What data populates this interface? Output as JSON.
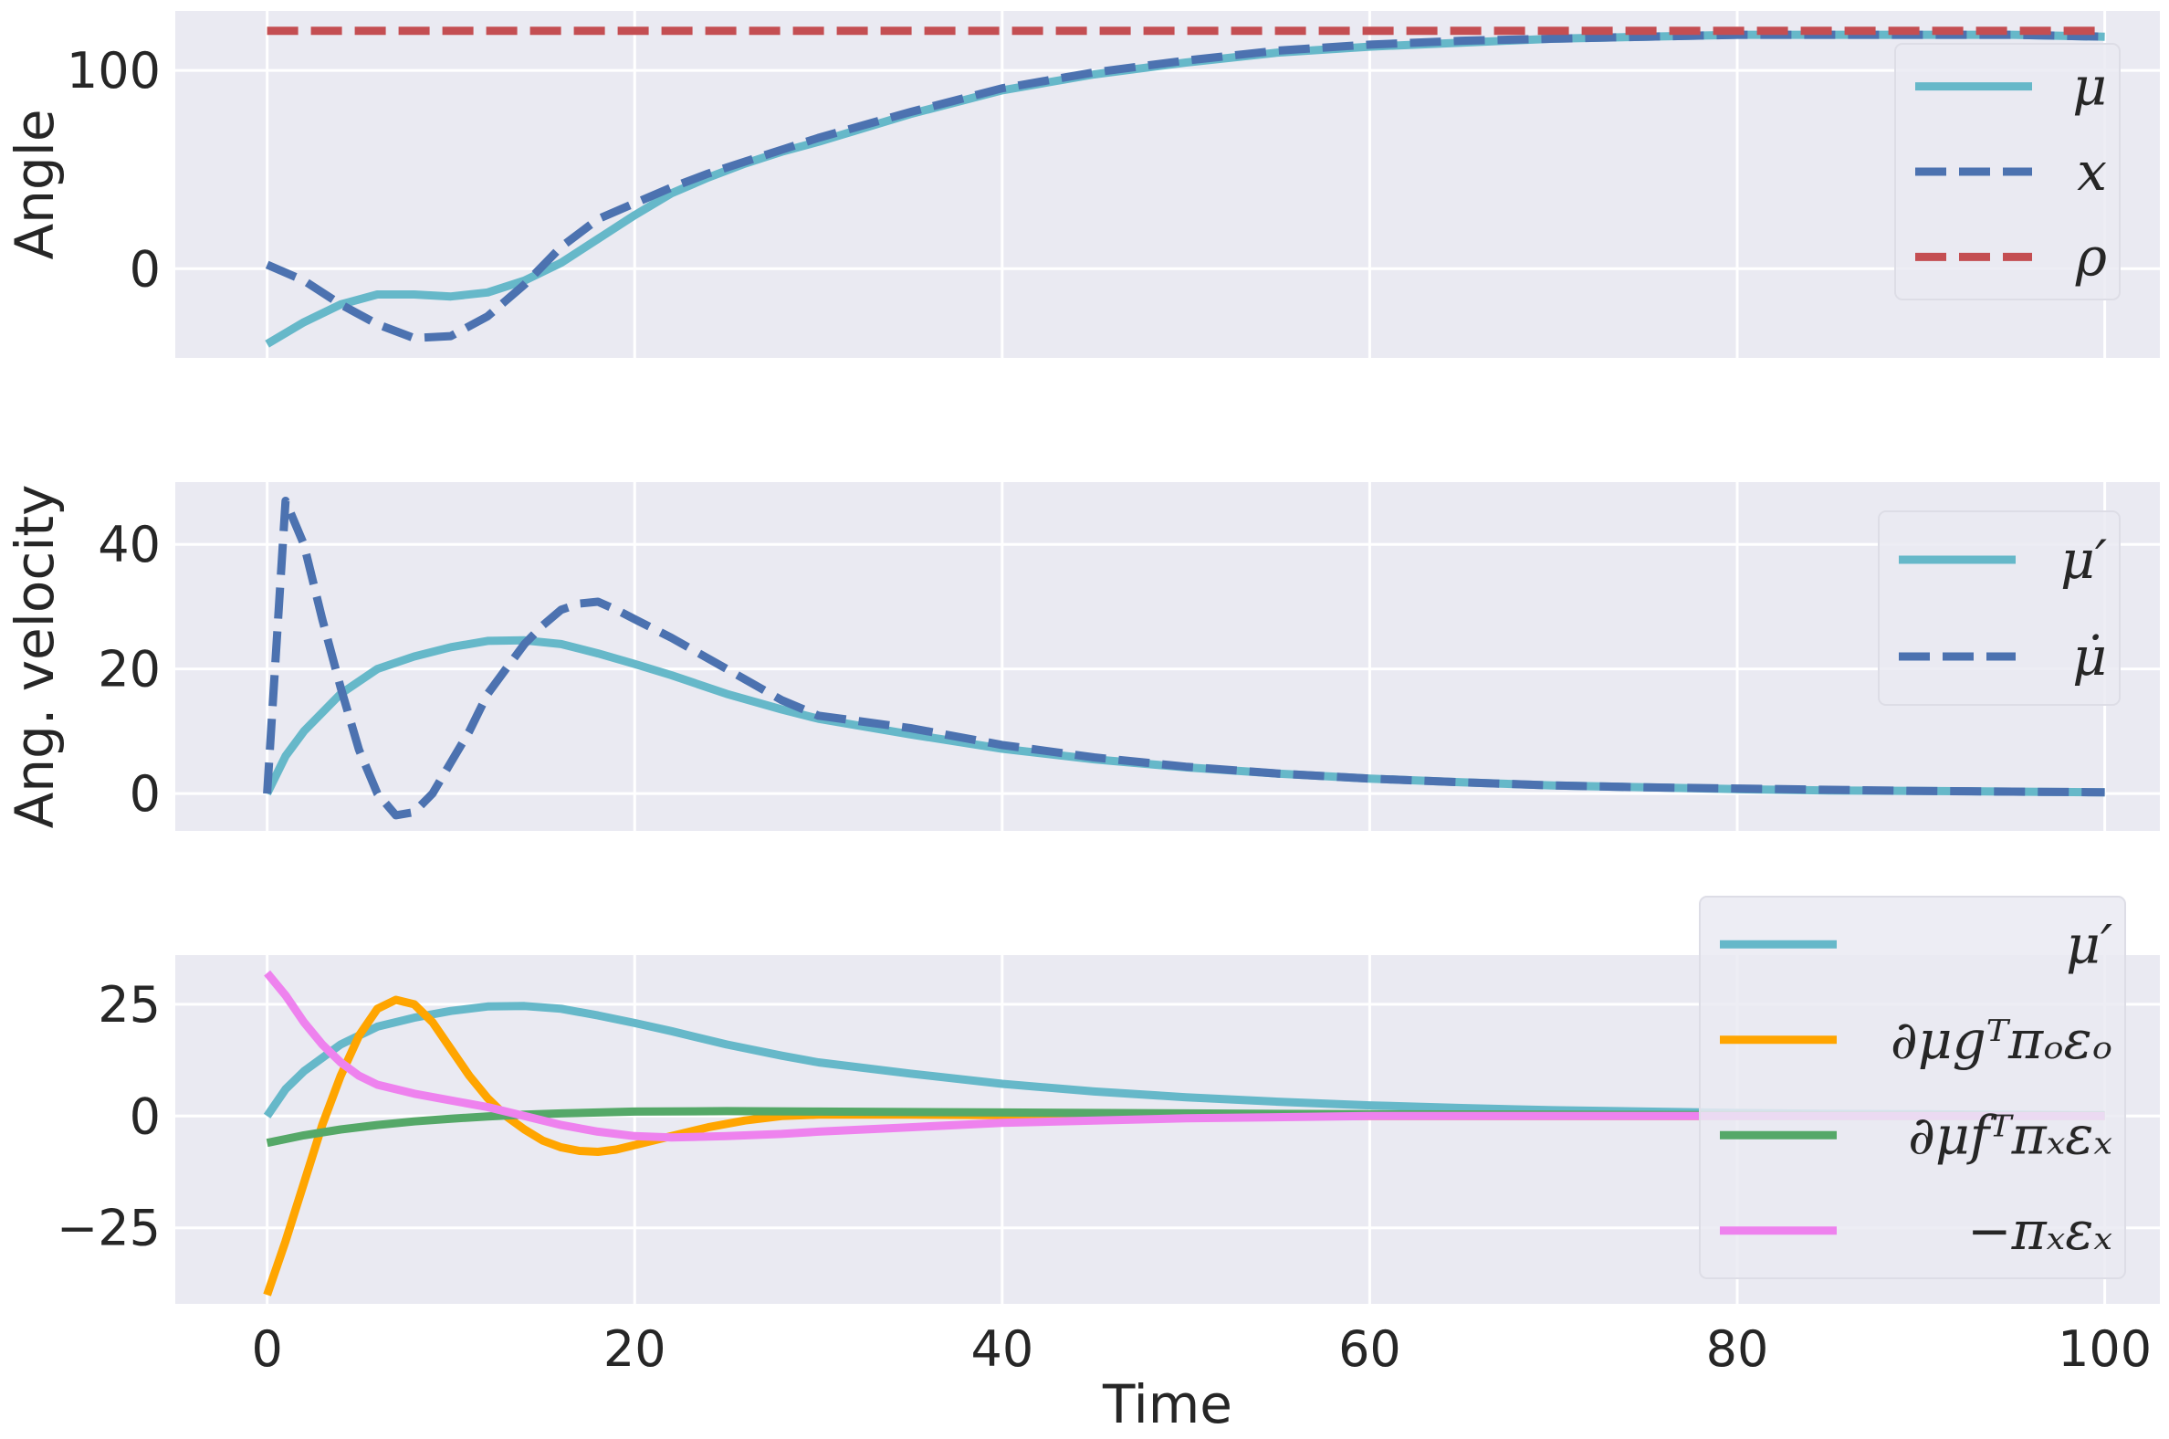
{
  "chart_data": [
    {
      "type": "line",
      "ylabel": "Angle",
      "ylim": [
        -45,
        130
      ],
      "yticks": [
        {
          "value": 0,
          "label": "0"
        },
        {
          "value": 100,
          "label": "100"
        }
      ],
      "legend_position": "right",
      "series": [
        {
          "name": "μ",
          "color": "#66b8c9",
          "style": "solid",
          "x": [
            0,
            2,
            4,
            6,
            8,
            10,
            12,
            14,
            16,
            18,
            20,
            22,
            24,
            26,
            28,
            30,
            35,
            40,
            45,
            50,
            55,
            60,
            65,
            70,
            75,
            80,
            85,
            90,
            95,
            100
          ],
          "y": [
            -38,
            -27,
            -18,
            -13,
            -13,
            -14,
            -12,
            -6,
            3,
            15,
            27,
            38,
            46,
            53,
            59,
            64,
            78,
            90,
            98,
            104,
            109,
            112,
            114,
            116,
            117,
            118,
            118,
            118,
            118,
            117
          ]
        },
        {
          "name": "x",
          "color": "#4c72b0",
          "style": "dashed",
          "x": [
            0,
            2,
            4,
            6,
            8,
            10,
            12,
            14,
            16,
            18,
            20,
            22,
            24,
            26,
            28,
            30,
            35,
            40,
            45,
            50,
            55,
            60,
            65,
            70,
            75,
            80,
            85,
            90,
            95,
            100
          ],
          "y": [
            2,
            -6,
            -18,
            -28,
            -35,
            -34,
            -24,
            -8,
            11,
            25,
            33,
            41,
            48,
            54,
            60,
            66,
            79,
            91,
            99,
            105,
            110,
            113,
            115,
            116,
            117,
            118,
            118,
            118,
            118,
            117
          ]
        },
        {
          "name": "ρ",
          "color": "#c44e52",
          "style": "dashed",
          "x": [
            0,
            100
          ],
          "y": [
            120,
            120
          ]
        }
      ]
    },
    {
      "type": "line",
      "ylabel": "Ang. velocity",
      "ylim": [
        -6,
        50
      ],
      "yticks": [
        {
          "value": 0,
          "label": "0"
        },
        {
          "value": 20,
          "label": "20"
        },
        {
          "value": 40,
          "label": "40"
        }
      ],
      "legend_position": "right",
      "series": [
        {
          "name": "μ′",
          "color": "#66b8c9",
          "style": "solid",
          "x": [
            0,
            1,
            2,
            4,
            6,
            8,
            10,
            12,
            14,
            16,
            18,
            20,
            22,
            25,
            28,
            30,
            35,
            40,
            45,
            50,
            55,
            60,
            65,
            70,
            75,
            80,
            85,
            90,
            95,
            100
          ],
          "y": [
            0,
            6,
            10,
            16,
            20,
            22,
            23.5,
            24.5,
            24.6,
            24,
            22.5,
            20.8,
            19,
            16,
            13.5,
            12,
            9.5,
            7.2,
            5.5,
            4.2,
            3.2,
            2.4,
            1.8,
            1.3,
            1.0,
            0.7,
            0.5,
            0.4,
            0.3,
            0.2
          ]
        },
        {
          "name": "μ̇",
          "color": "#4c72b0",
          "style": "dashed",
          "x": [
            0,
            1,
            2,
            3,
            4,
            5,
            6,
            7,
            8,
            9,
            10,
            11,
            12,
            13,
            14,
            15,
            16,
            17,
            18,
            19,
            20,
            22,
            25,
            28,
            30,
            35,
            40,
            45,
            50,
            55,
            60,
            65,
            70,
            75,
            80,
            85,
            90,
            95,
            100
          ],
          "y": [
            0,
            47,
            40,
            28,
            17,
            7,
            0,
            -3.5,
            -3,
            0,
            5,
            10,
            16,
            20,
            24,
            27,
            29.5,
            30.5,
            30.8,
            29.5,
            28,
            25,
            20,
            15,
            12.5,
            10.5,
            7.8,
            5.8,
            4.3,
            3.2,
            2.4,
            1.8,
            1.3,
            1.0,
            0.8,
            0.6,
            0.4,
            0.3,
            0.2
          ]
        }
      ]
    },
    {
      "type": "line",
      "xlabel": "Time",
      "ylim": [
        -42,
        36
      ],
      "xlim": [
        -5,
        103
      ],
      "yticks": [
        {
          "value": -25,
          "label": "−25"
        },
        {
          "value": 0,
          "label": "0"
        },
        {
          "value": 25,
          "label": "25"
        }
      ],
      "xticks": [
        {
          "value": 0,
          "label": "0"
        },
        {
          "value": 20,
          "label": "20"
        },
        {
          "value": 40,
          "label": "40"
        },
        {
          "value": 60,
          "label": "60"
        },
        {
          "value": 80,
          "label": "80"
        },
        {
          "value": 100,
          "label": "100"
        }
      ],
      "legend_position": "upper right",
      "series": [
        {
          "name": "μ′",
          "color": "#66b8c9",
          "style": "solid",
          "x": [
            0,
            1,
            2,
            4,
            6,
            8,
            10,
            12,
            14,
            16,
            18,
            20,
            22,
            25,
            28,
            30,
            35,
            40,
            45,
            50,
            55,
            60,
            65,
            70,
            75,
            80,
            85,
            90,
            95,
            100
          ],
          "y": [
            0,
            6,
            10,
            16,
            20,
            22,
            23.5,
            24.5,
            24.6,
            24,
            22.5,
            20.8,
            19,
            16,
            13.5,
            12,
            9.5,
            7.2,
            5.5,
            4.2,
            3.2,
            2.4,
            1.8,
            1.3,
            1.0,
            0.7,
            0.5,
            0.4,
            0.3,
            0.2
          ]
        },
        {
          "name": "∂μgᵀπₒεₒ",
          "color": "#ffa500",
          "style": "solid",
          "x": [
            0,
            1,
            2,
            3,
            4,
            5,
            6,
            7,
            8,
            9,
            10,
            11,
            12,
            13,
            14,
            15,
            16,
            17,
            18,
            19,
            20,
            22,
            24,
            26,
            28,
            30,
            35,
            40,
            50,
            60,
            70,
            80,
            90,
            100
          ],
          "y": [
            -40,
            -28,
            -15,
            -2,
            9,
            18,
            24,
            26,
            25,
            21,
            15,
            9,
            4,
            0,
            -3,
            -5.5,
            -7,
            -7.8,
            -8,
            -7.5,
            -6.5,
            -4.5,
            -2.5,
            -1,
            0,
            0.3,
            0.3,
            0.2,
            0.1,
            0,
            0,
            0,
            0,
            0
          ]
        },
        {
          "name": "∂μfᵀπₓεₓ",
          "color": "#55a868",
          "style": "solid",
          "x": [
            0,
            2,
            4,
            6,
            8,
            10,
            12,
            14,
            16,
            18,
            20,
            25,
            30,
            40,
            50,
            60,
            70,
            80,
            90,
            100
          ],
          "y": [
            -6,
            -4.3,
            -3,
            -2,
            -1.2,
            -0.6,
            -0.1,
            0.3,
            0.6,
            0.8,
            1,
            1.1,
            1,
            0.8,
            0.6,
            0.4,
            0.3,
            0.2,
            0.1,
            0.1
          ]
        },
        {
          "name": "−πₓεₓ",
          "color": "#ee82ee",
          "style": "solid",
          "x": [
            0,
            1,
            2,
            3,
            4,
            5,
            6,
            8,
            10,
            12,
            14,
            16,
            18,
            20,
            22,
            25,
            28,
            30,
            35,
            40,
            50,
            60,
            70,
            80,
            90,
            100
          ],
          "y": [
            32,
            27,
            21,
            16,
            12,
            9,
            7,
            5,
            3.5,
            2,
            0,
            -2,
            -3.5,
            -4.5,
            -4.8,
            -4.5,
            -4,
            -3.5,
            -2.5,
            -1.5,
            -0.5,
            0,
            0,
            0,
            0,
            0
          ]
        }
      ]
    }
  ]
}
